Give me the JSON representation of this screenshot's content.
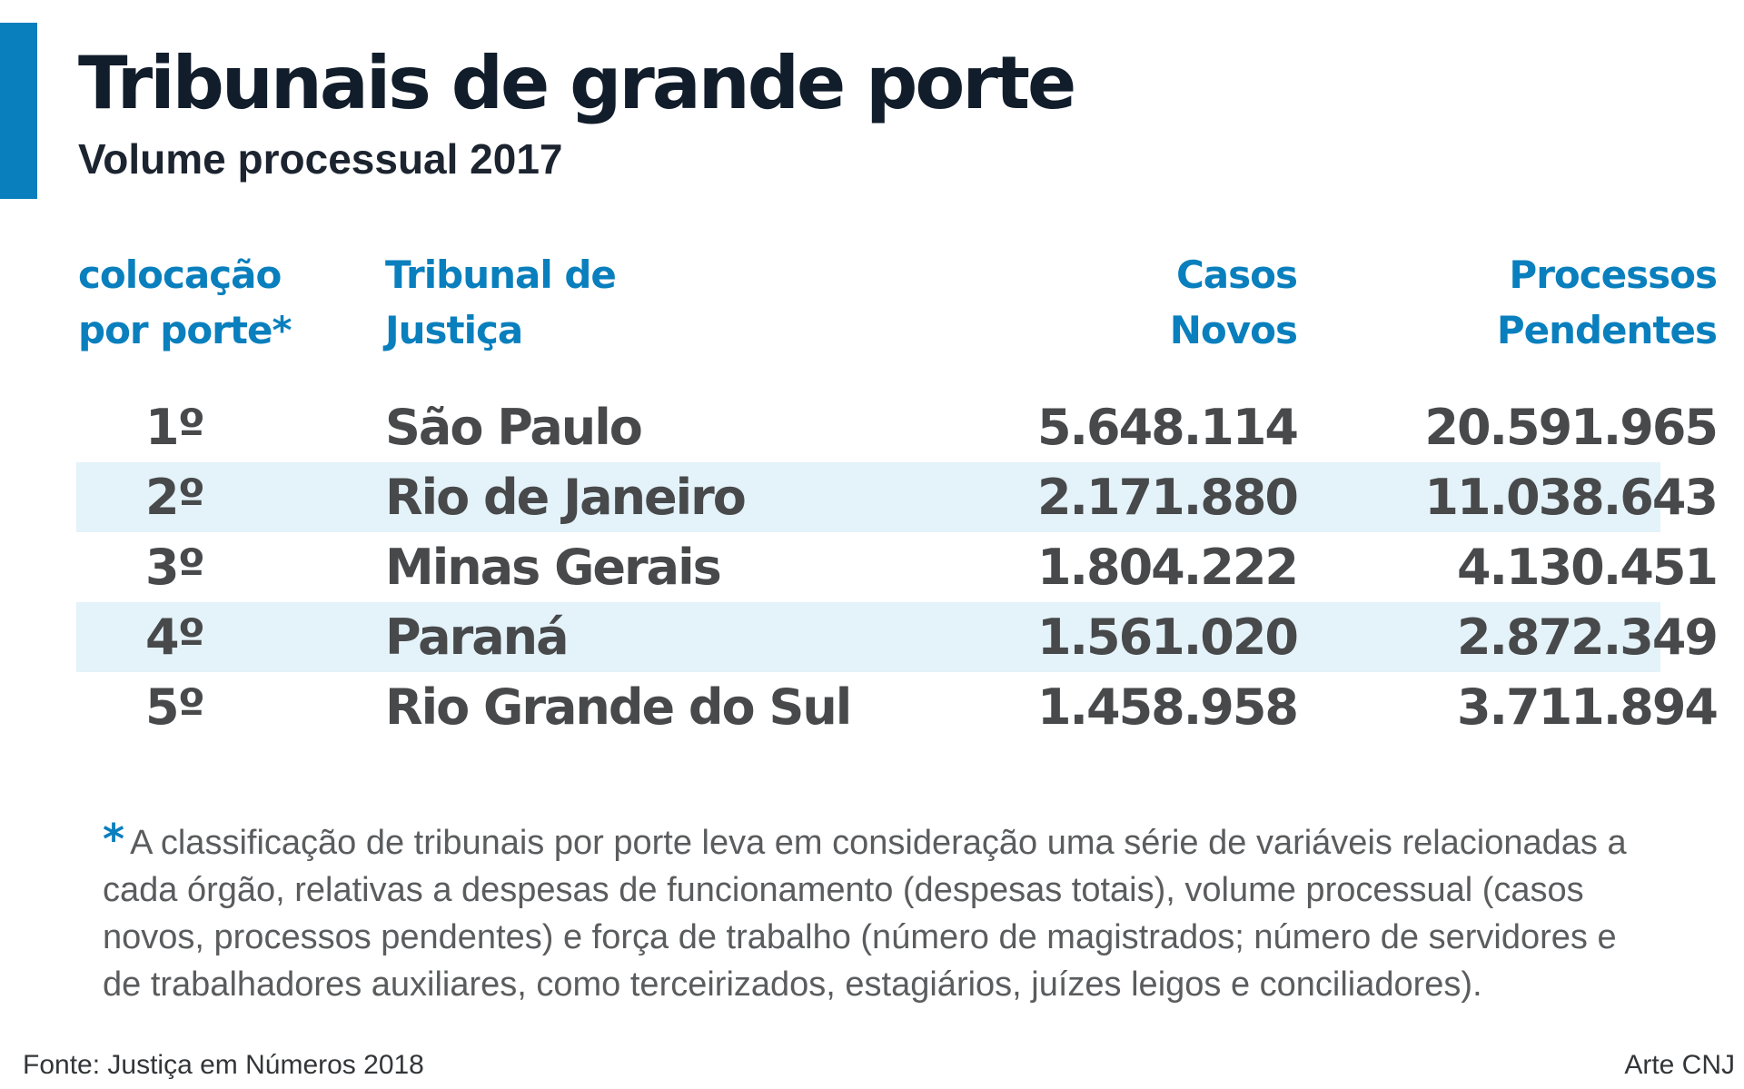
{
  "header": {
    "title": "Tribunais de grande porte",
    "subtitle": "Volume processual 2017"
  },
  "colors": {
    "accent": "#0a7fbd",
    "title": "#111d2b",
    "row_shade": "#e4f2f9",
    "body_text": "#47494b"
  },
  "chart_data": {
    "type": "table",
    "title": "Tribunais de grande porte",
    "subtitle": "Volume processual 2017",
    "columns": [
      "colocação\npor porte*",
      "Tribunal de\nJustiça",
      "Casos\nNovos",
      "Processos\nPendentes"
    ],
    "rows": [
      {
        "rank": "1º",
        "tribunal": "São Paulo",
        "casos_novos": "5.648.114",
        "processos_pendentes": "20.591.965"
      },
      {
        "rank": "2º",
        "tribunal": "Rio de Janeiro",
        "casos_novos": "2.171.880",
        "processos_pendentes": "11.038.643"
      },
      {
        "rank": "3º",
        "tribunal": "Minas Gerais",
        "casos_novos": "1.804.222",
        "processos_pendentes": "4.130.451"
      },
      {
        "rank": "4º",
        "tribunal": "Paraná",
        "casos_novos": "1.561.020",
        "processos_pendentes": "2.872.349"
      },
      {
        "rank": "5º",
        "tribunal": "Rio Grande do Sul",
        "casos_novos": "1.458.958",
        "processos_pendentes": "3.711.894"
      }
    ]
  },
  "footnote": {
    "marker": "*",
    "text": "A classificação de tribunais por porte leva em consideração uma série de variáveis relacionadas a cada órgão, relativas a despesas de funcionamento (despesas totais), volume processual (casos novos, processos pendentes) e força de trabalho (número de magistrados; número de servidores e de trabalhadores auxiliares, como terceirizados, estagiários, juízes leigos e conciliadores)."
  },
  "footer": {
    "source": "Fonte: Justiça em Números 2018",
    "credit": "Arte CNJ"
  }
}
